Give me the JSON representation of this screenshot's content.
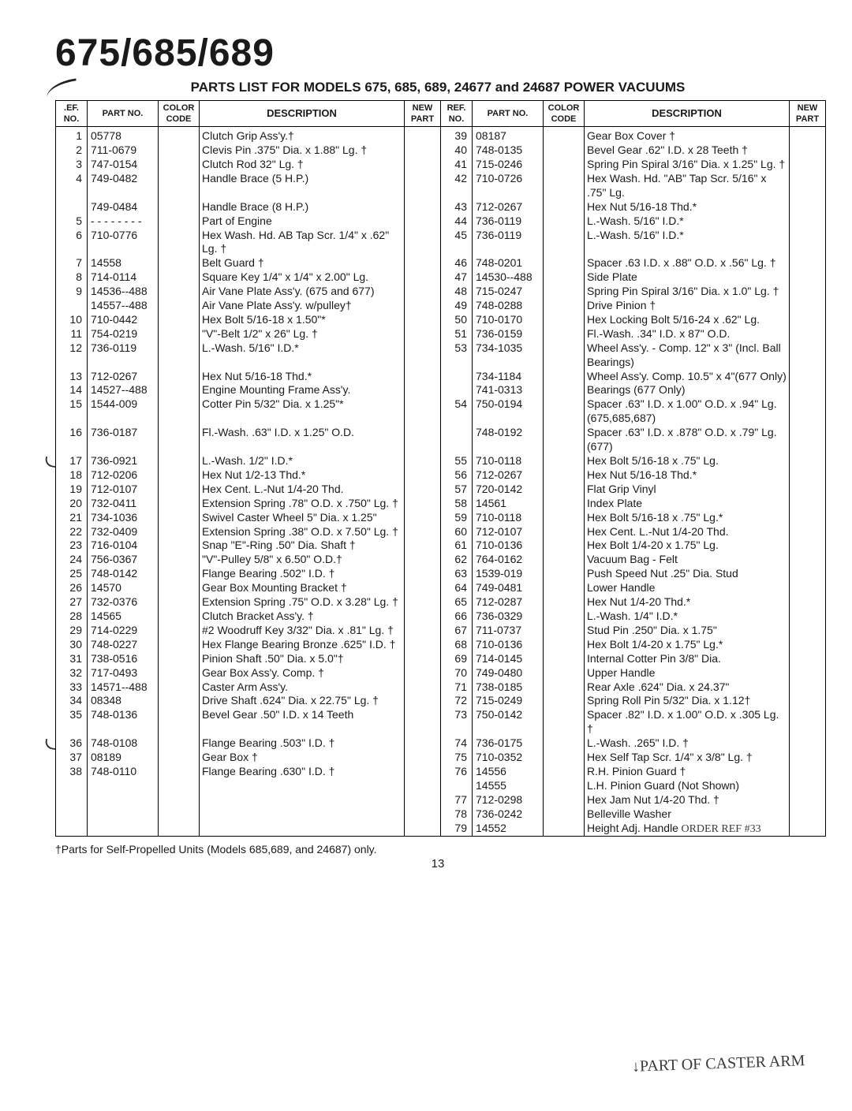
{
  "title": "675/685/689",
  "subtitle": "PARTS LIST FOR MODELS 675, 685, 689, 24677 and 24687 POWER VACUUMS",
  "headers": {
    "ref": ".EF.\nNO.",
    "part": "PART\nNO.",
    "color": "COLOR\nCODE",
    "desc": "DESCRIPTION",
    "newpart": "NEW\nPART",
    "ref2": "REF.\nNO.",
    "part2": "PART\nNO.",
    "color2": "COLOR\nCODE",
    "desc2": "DESCRIPTION",
    "newpart2": "NEW\nPART"
  },
  "left": [
    {
      "ref": "1",
      "part": "05778",
      "desc": "Clutch Grip Ass'y.†"
    },
    {
      "ref": "2",
      "part": "711-0679",
      "desc": "Clevis Pin .375\" Dia. x 1.88\" Lg. †"
    },
    {
      "ref": "3",
      "part": "747-0154",
      "desc": "Clutch Rod 32\" Lg. †"
    },
    {
      "ref": "4",
      "part": "749-0482",
      "desc": "Handle Brace (5 H.P.)"
    },
    {
      "ref": "",
      "part": "749-0484",
      "desc": "Handle Brace (8 H.P.)"
    },
    {
      "ref": "5",
      "part": "- - - - - - - -",
      "desc": "Part of Engine"
    },
    {
      "ref": "6",
      "part": "710-0776",
      "desc": "Hex Wash. Hd. AB Tap Scr. 1/4\" x .62\" Lg. †"
    },
    {
      "ref": "7",
      "part": "14558",
      "desc": "Belt Guard †"
    },
    {
      "ref": "8",
      "part": "714-0114",
      "desc": "Square Key 1/4\" x 1/4\" x 2.00\" Lg."
    },
    {
      "ref": "9",
      "part": "14536--488",
      "desc": "Air Vane Plate Ass'y. (675 and 677)"
    },
    {
      "ref": "",
      "part": "14557--488",
      "desc": "Air Vane Plate Ass'y. w/pulley†"
    },
    {
      "ref": "10",
      "part": "710-0442",
      "desc": "Hex Bolt 5/16-18 x 1.50\"*"
    },
    {
      "ref": "11",
      "part": "754-0219",
      "desc": "\"V\"-Belt 1/2\" x 26\" Lg. †"
    },
    {
      "ref": "12",
      "part": "736-0119",
      "desc": "L.-Wash. 5/16\" I.D.*"
    },
    {
      "ref": "13",
      "part": "712-0267",
      "desc": "Hex Nut 5/16-18 Thd.*"
    },
    {
      "ref": "14",
      "part": "14527--488",
      "desc": "Engine Mounting Frame Ass'y."
    },
    {
      "ref": "15",
      "part": "1544-009",
      "desc": "Cotter Pin 5/32\" Dia. x 1.25\"*"
    },
    {
      "ref": "16",
      "part": "736-0187",
      "desc": "Fl.-Wash. .63\" I.D. x 1.25\" O.D."
    },
    {
      "ref": "17",
      "part": "736-0921",
      "desc": "L.-Wash. 1/2\" I.D.*",
      "tick": true
    },
    {
      "ref": "18",
      "part": "712-0206",
      "desc": "Hex Nut 1/2-13 Thd.*"
    },
    {
      "ref": "19",
      "part": "712-0107",
      "desc": "Hex Cent. L.-Nut 1/4-20 Thd."
    },
    {
      "ref": "20",
      "part": "732-0411",
      "desc": "Extension Spring .78\" O.D. x .750\" Lg. †"
    },
    {
      "ref": "21",
      "part": "734-1036",
      "desc": "Swivel Caster Wheel 5\" Dia. x 1.25\""
    },
    {
      "ref": "22",
      "part": "732-0409",
      "desc": "Extension Spring .38\" O.D. x 7.50\" Lg. †"
    },
    {
      "ref": "23",
      "part": "716-0104",
      "desc": "Snap \"E\"-Ring .50\" Dia. Shaft †"
    },
    {
      "ref": "24",
      "part": "756-0367",
      "desc": "\"V\"-Pulley 5/8\" x 6.50\" O.D.†"
    },
    {
      "ref": "25",
      "part": "748-0142",
      "desc": "Flange Bearing .502\" I.D. †"
    },
    {
      "ref": "26",
      "part": "14570",
      "desc": "Gear Box Mounting Bracket †"
    },
    {
      "ref": "27",
      "part": "732-0376",
      "desc": "Extension Spring .75\" O.D. x 3.28\" Lg. †"
    },
    {
      "ref": "28",
      "part": "14565",
      "desc": "Clutch Bracket Ass'y. †"
    },
    {
      "ref": "29",
      "part": "714-0229",
      "desc": "#2 Woodruff Key 3/32\" Dia. x .81\" Lg. †"
    },
    {
      "ref": "30",
      "part": "748-0227",
      "desc": "Hex Flange Bearing Bronze .625\" I.D. †"
    },
    {
      "ref": "31",
      "part": "738-0516",
      "desc": "Pinion Shaft .50\" Dia. x 5.0\"†"
    },
    {
      "ref": "32",
      "part": "717-0493",
      "desc": "Gear Box Ass'y. Comp. †"
    },
    {
      "ref": "33",
      "part": "14571--488",
      "desc": "Caster Arm Ass'y."
    },
    {
      "ref": "34",
      "part": "08348",
      "desc": "Drive Shaft .624\" Dia. x 22.75\" Lg. †"
    },
    {
      "ref": "35",
      "part": "748-0136",
      "desc": "Bevel Gear .50\" I.D. x 14 Teeth"
    },
    {
      "ref": "36",
      "part": "748-0108",
      "desc": "Flange Bearing .503\" I.D. †",
      "tick": true
    },
    {
      "ref": "37",
      "part": "08189",
      "desc": "Gear Box †"
    },
    {
      "ref": "38",
      "part": "748-0110",
      "desc": "Flange Bearing .630\" I.D. †"
    }
  ],
  "right": [
    {
      "ref": "39",
      "part": "08187",
      "desc": "Gear Box Cover †"
    },
    {
      "ref": "40",
      "part": "748-0135",
      "desc": "Bevel Gear .62\" I.D. x 28 Teeth †"
    },
    {
      "ref": "41",
      "part": "715-0246",
      "desc": "Spring Pin Spiral 3/16\" Dia. x 1.25\" Lg. †"
    },
    {
      "ref": "42",
      "part": "710-0726",
      "desc": "Hex Wash. Hd. \"AB\" Tap Scr. 5/16\" x .75\" Lg."
    },
    {
      "ref": "43",
      "part": "712-0267",
      "desc": "Hex Nut 5/16-18 Thd.*"
    },
    {
      "ref": "44",
      "part": "736-0119",
      "desc": "L.-Wash. 5/16\" I.D.*"
    },
    {
      "ref": "45",
      "part": "736-0119",
      "desc": "L.-Wash. 5/16\" I.D.*"
    },
    {
      "ref": "46",
      "part": "748-0201",
      "desc": "Spacer .63 I.D. x .88\" O.D. x .56\" Lg. †"
    },
    {
      "ref": "47",
      "part": "14530--488",
      "desc": "Side Plate"
    },
    {
      "ref": "48",
      "part": "715-0247",
      "desc": "Spring Pin Spiral 3/16\" Dia. x 1.0\" Lg. †"
    },
    {
      "ref": "49",
      "part": "748-0288",
      "desc": "Drive Pinion †"
    },
    {
      "ref": "50",
      "part": "710-0170",
      "desc": "Hex Locking Bolt 5/16-24 x .62\" Lg."
    },
    {
      "ref": "51",
      "part": "736-0159",
      "desc": "Fl.-Wash. .34\" I.D. x 87\" O.D."
    },
    {
      "ref": "53",
      "part": "734-1035",
      "desc": "Wheel Ass'y. - Comp. 12\" x 3\" (Incl. Ball Bearings)"
    },
    {
      "ref": "",
      "part": "734-1184",
      "desc": "Wheel Ass'y. Comp. 10.5\" x 4\"(677 Only)"
    },
    {
      "ref": "",
      "part": "741-0313",
      "desc": "Bearings (677 Only)"
    },
    {
      "ref": "54",
      "part": "750-0194",
      "desc": "Spacer .63\" I.D. x 1.00\" O.D. x .94\" Lg. (675,685,687)"
    },
    {
      "ref": "",
      "part": "748-0192",
      "desc": "Spacer .63\" I.D. x .878\" O.D. x .79\" Lg. (677)"
    },
    {
      "ref": "55",
      "part": "710-0118",
      "desc": "Hex Bolt 5/16-18 x .75\" Lg."
    },
    {
      "ref": "56",
      "part": "712-0267",
      "desc": "Hex Nut 5/16-18 Thd.*"
    },
    {
      "ref": "57",
      "part": "720-0142",
      "desc": "Flat Grip Vinyl"
    },
    {
      "ref": "58",
      "part": "14561",
      "desc": "Index Plate"
    },
    {
      "ref": "59",
      "part": "710-0118",
      "desc": "Hex Bolt 5/16-18 x .75\" Lg.*"
    },
    {
      "ref": "60",
      "part": "712-0107",
      "desc": "Hex Cent. L.-Nut 1/4-20 Thd."
    },
    {
      "ref": "61",
      "part": "710-0136",
      "desc": "Hex Bolt 1/4-20 x 1.75\" Lg."
    },
    {
      "ref": "62",
      "part": "764-0162",
      "desc": "Vacuum Bag - Felt"
    },
    {
      "ref": "63",
      "part": "1539-019",
      "desc": "Push Speed Nut .25\" Dia. Stud"
    },
    {
      "ref": "64",
      "part": "749-0481",
      "desc": "Lower Handle"
    },
    {
      "ref": "65",
      "part": "712-0287",
      "desc": "Hex Nut 1/4-20 Thd.*"
    },
    {
      "ref": "66",
      "part": "736-0329",
      "desc": "L.-Wash. 1/4\" I.D.*"
    },
    {
      "ref": "67",
      "part": "711-0737",
      "desc": "Stud Pin .250\" Dia. x 1.75\""
    },
    {
      "ref": "68",
      "part": "710-0136",
      "desc": "Hex Bolt 1/4-20 x 1.75\" Lg.*"
    },
    {
      "ref": "69",
      "part": "714-0145",
      "desc": "Internal Cotter Pin 3/8\" Dia."
    },
    {
      "ref": "70",
      "part": "749-0480",
      "desc": "Upper Handle"
    },
    {
      "ref": "71",
      "part": "738-0185",
      "desc": "Rear Axle .624\" Dia. x 24.37\""
    },
    {
      "ref": "72",
      "part": "715-0249",
      "desc": "Spring Roll Pin 5/32\" Dia. x 1.12†"
    },
    {
      "ref": "73",
      "part": "750-0142",
      "desc": "Spacer .82\" I.D. x 1.00\" O.D. x .305 Lg. †"
    },
    {
      "ref": "74",
      "part": "736-0175",
      "desc": "L.-Wash. .265\" I.D. †"
    },
    {
      "ref": "75",
      "part": "710-0352",
      "desc": "Hex Self Tap Scr. 1/4\" x 3/8\" Lg. †"
    },
    {
      "ref": "76",
      "part": "14556",
      "desc": "R.H. Pinion Guard †"
    },
    {
      "ref": "",
      "part": "14555",
      "desc": "L.H. Pinion Guard (Not Shown)"
    },
    {
      "ref": "77",
      "part": "712-0298",
      "desc": "Hex Jam Nut 1/4-20 Thd. †"
    },
    {
      "ref": "78",
      "part": "736-0242",
      "desc": "Belleville Washer"
    },
    {
      "ref": "79",
      "part": "14552",
      "desc": "Height Adj. Handle",
      "hand": "ORDER REF #33"
    }
  ],
  "footnote": "†Parts for Self-Propelled Units (Models 685,689, and 24687) only.",
  "handnote": "↓PART OF CASTER ARM",
  "page": "13"
}
